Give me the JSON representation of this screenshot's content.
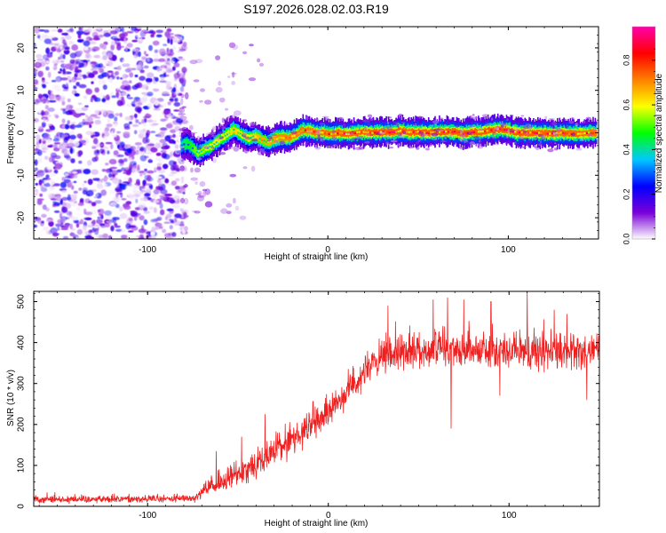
{
  "figure": {
    "title": "S197.2026.028.02.03.R19"
  },
  "chart_data": [
    {
      "type": "heatmap",
      "name": "spectrogram",
      "xlabel": "Height of straight line (km)",
      "ylabel": "Frequency (Hz)",
      "xlim": [
        -163,
        150
      ],
      "ylim": [
        -25,
        25
      ],
      "xticks": [
        -100,
        0,
        100
      ],
      "yticks": [
        -20,
        -10,
        0,
        10,
        20
      ],
      "colorbar": {
        "label": "Normalized spectral amplitude",
        "range": [
          0.0,
          0.95
        ],
        "ticks": [
          0.0,
          0.2,
          0.4,
          0.6,
          0.8
        ],
        "tick_labels": [
          "0.0",
          "0.2",
          "0.4",
          "0.6",
          "0.8"
        ],
        "colormap": [
          "#ffffff",
          "#7a00d8",
          "#0000ff",
          "#00c8ff",
          "#00ff00",
          "#ffff00",
          "#ff8000",
          "#ff0000",
          "#ff00aa"
        ]
      },
      "noise_region_x": [
        -163,
        -81
      ],
      "noise_amplitude_max": 0.25,
      "ridge": {
        "x": [
          -81,
          -78,
          -75,
          -72,
          -68,
          -64,
          -60,
          -56,
          -52,
          -48,
          -44,
          -40,
          -36,
          -33,
          -30,
          -26,
          -22,
          -18,
          -14,
          -10,
          -6,
          -2,
          2,
          6,
          10,
          15,
          20,
          25,
          30,
          35,
          40,
          45,
          50,
          55,
          60,
          65,
          70,
          75,
          80,
          85,
          90,
          95,
          100,
          105,
          110,
          115,
          120,
          125,
          130,
          135,
          140,
          145,
          149
        ],
        "freq": [
          -3,
          -2.5,
          -3.5,
          -4.8,
          -3.8,
          -3,
          -1.5,
          -0.5,
          0.8,
          -0.5,
          -1.3,
          -0.8,
          -1.8,
          -2.2,
          -1.6,
          -1.0,
          -1.3,
          -0.5,
          0.6,
          0.5,
          0.0,
          0.0,
          -0.3,
          0.0,
          -0.3,
          0.0,
          0.2,
          0.0,
          0.2,
          0.1,
          0.5,
          0.1,
          0.2,
          0.0,
          0.2,
          0.2,
          0.2,
          -0.2,
          0.2,
          0.2,
          0.6,
          0.8,
          0.6,
          0.0,
          0.0,
          0.0,
          -0.1,
          -0.2,
          0.0,
          -0.2,
          -0.2,
          0.0,
          0.0
        ],
        "amplitude": [
          0.4,
          0.45,
          0.5,
          0.55,
          0.55,
          0.6,
          0.6,
          0.6,
          0.65,
          0.6,
          0.6,
          0.65,
          0.7,
          0.7,
          0.75,
          0.8,
          0.8,
          0.82,
          0.85,
          0.85,
          0.85,
          0.85,
          0.85,
          0.9,
          0.9,
          0.88,
          0.9,
          0.9,
          0.9,
          0.92,
          0.9,
          0.9,
          0.92,
          0.9,
          0.92,
          0.92,
          0.9,
          0.9,
          0.92,
          0.9,
          0.92,
          0.9,
          0.9,
          0.92,
          0.9,
          0.9,
          0.88,
          0.9,
          0.88,
          0.88,
          0.88,
          0.85,
          0.85
        ],
        "width_hz": 1.5
      }
    },
    {
      "type": "line",
      "name": "snr",
      "xlabel": "Height of straight line (km)",
      "ylabel": "SNR (10 * v/v)",
      "xlim": [
        -163,
        150
      ],
      "ylim": [
        0,
        525
      ],
      "xticks": [
        -100,
        0,
        100
      ],
      "yticks": [
        0,
        100,
        200,
        300,
        400,
        500
      ],
      "color": "#ee2020",
      "trend": {
        "x": [
          -163,
          -120,
          -90,
          -75,
          -68,
          -60,
          -50,
          -40,
          -30,
          -20,
          -10,
          0,
          10,
          20,
          30,
          40,
          60,
          80,
          100,
          120,
          150
        ],
        "y": [
          18,
          18,
          18,
          20,
          40,
          55,
          80,
          105,
          135,
          165,
          195,
          230,
          280,
          330,
          360,
          380,
          385,
          385,
          378,
          378,
          378
        ]
      },
      "noise_spread": {
        "x": [
          -163,
          -75,
          -60,
          -40,
          0,
          30,
          150
        ],
        "y": [
          12,
          12,
          35,
          45,
          45,
          55,
          55
        ]
      },
      "spikes": [
        {
          "x": -62,
          "y": 135
        },
        {
          "x": -48,
          "y": 170
        },
        {
          "x": -35,
          "y": 225
        },
        {
          "x": 33,
          "y": 490
        },
        {
          "x": 58,
          "y": 505
        },
        {
          "x": 66,
          "y": 510
        },
        {
          "x": 75,
          "y": 505
        },
        {
          "x": 90,
          "y": 500
        },
        {
          "x": 110,
          "y": 525
        },
        {
          "x": 125,
          "y": 480
        },
        {
          "x": 132,
          "y": 470
        },
        {
          "x": 68,
          "y": 190
        },
        {
          "x": 95,
          "y": 270
        },
        {
          "x": 143,
          "y": 260
        }
      ]
    }
  ]
}
